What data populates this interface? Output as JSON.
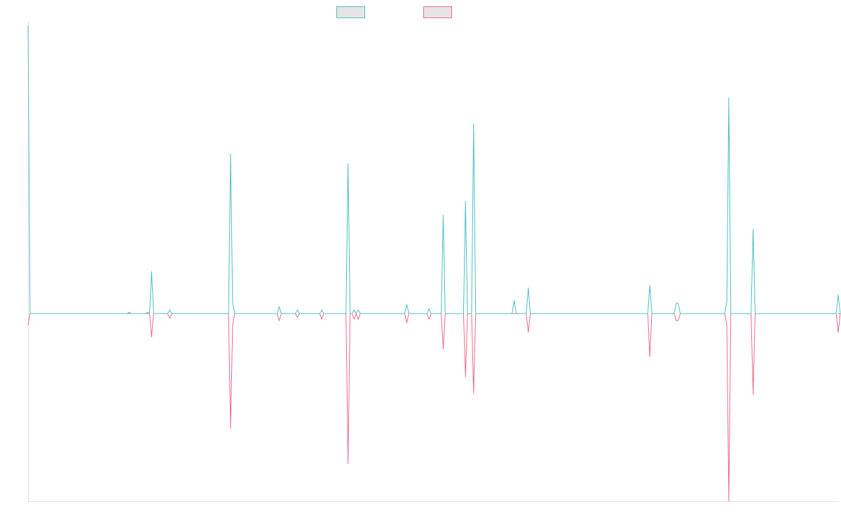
{
  "chart_data": {
    "type": "line",
    "title": "",
    "xlabel": "",
    "ylabel": "",
    "grid": false,
    "legend_position": "top-center",
    "ylim": [
      -4,
      6.15
    ],
    "series": [
      {
        "color": "#4bc0c0",
        "fill": "#e5e5e5",
        "points": [
          [
            1,
            6.15
          ],
          [
            2,
            0
          ],
          [
            50,
            0
          ],
          [
            51,
            0.03
          ],
          [
            52,
            0
          ],
          [
            59,
            0
          ],
          [
            60,
            0.03
          ],
          [
            61,
            0
          ],
          [
            62,
            0.9
          ],
          [
            63,
            0
          ],
          [
            70,
            0
          ],
          [
            71,
            0.08
          ],
          [
            72,
            0
          ],
          [
            100,
            0
          ],
          [
            101,
            3.4
          ],
          [
            102,
            0.25
          ],
          [
            103,
            0
          ],
          [
            124,
            0
          ],
          [
            125,
            0.15
          ],
          [
            126,
            0
          ],
          [
            133,
            0
          ],
          [
            134,
            0.08
          ],
          [
            135,
            0
          ],
          [
            145,
            0
          ],
          [
            146,
            0.08
          ],
          [
            147,
            0
          ],
          [
            158,
            0
          ],
          [
            159,
            3.2
          ],
          [
            160,
            0
          ],
          [
            161,
            0
          ],
          [
            162,
            0.08
          ],
          [
            163,
            0
          ],
          [
            164,
            0.08
          ],
          [
            165,
            0
          ],
          [
            187,
            0
          ],
          [
            188,
            0.2
          ],
          [
            189,
            0
          ],
          [
            198,
            0
          ],
          [
            199,
            0.1
          ],
          [
            200,
            0
          ],
          [
            205,
            0
          ],
          [
            206,
            2.1
          ],
          [
            207,
            0
          ],
          [
            216,
            0
          ],
          [
            217,
            2.4
          ],
          [
            218,
            0
          ],
          [
            220,
            0
          ],
          [
            221,
            4.05
          ],
          [
            222,
            0
          ],
          [
            240,
            0
          ],
          [
            241,
            0.28
          ],
          [
            242,
            0
          ],
          [
            247,
            0
          ],
          [
            248,
            0.55
          ],
          [
            249,
            0
          ],
          [
            307,
            0
          ],
          [
            308,
            0.6
          ],
          [
            309,
            0
          ],
          [
            320,
            0
          ],
          [
            321,
            0.22
          ],
          [
            322,
            0.22
          ],
          [
            323,
            0
          ],
          [
            345,
            0
          ],
          [
            346,
            0.25
          ],
          [
            347,
            4.6
          ],
          [
            348,
            0
          ],
          [
            358,
            0
          ],
          [
            359,
            1.8
          ],
          [
            360,
            0
          ],
          [
            400,
            0
          ],
          [
            401,
            0.4
          ],
          [
            402,
            0
          ]
        ]
      },
      {
        "color": "#f06a8a",
        "fill": "#e5e5e5",
        "points": [
          [
            1,
            -0.25
          ],
          [
            2,
            0
          ],
          [
            61,
            0
          ],
          [
            62,
            -0.5
          ],
          [
            63,
            0
          ],
          [
            70,
            0
          ],
          [
            71,
            -0.1
          ],
          [
            72,
            0
          ],
          [
            100,
            0
          ],
          [
            101,
            -2.45
          ],
          [
            102,
            -0.25
          ],
          [
            103,
            0
          ],
          [
            124,
            0
          ],
          [
            125,
            -0.15
          ],
          [
            126,
            0
          ],
          [
            133,
            0
          ],
          [
            134,
            -0.08
          ],
          [
            135,
            0
          ],
          [
            145,
            0
          ],
          [
            146,
            -0.12
          ],
          [
            147,
            0
          ],
          [
            158,
            0
          ],
          [
            159,
            -3.2
          ],
          [
            160,
            0
          ],
          [
            161,
            0
          ],
          [
            162,
            -0.12
          ],
          [
            163,
            0
          ],
          [
            164,
            -0.12
          ],
          [
            165,
            0
          ],
          [
            187,
            0
          ],
          [
            188,
            -0.2
          ],
          [
            189,
            0
          ],
          [
            198,
            0
          ],
          [
            199,
            -0.12
          ],
          [
            200,
            0
          ],
          [
            205,
            0
          ],
          [
            206,
            -0.75
          ],
          [
            207,
            0
          ],
          [
            216,
            0
          ],
          [
            217,
            -1.35
          ],
          [
            218,
            0
          ],
          [
            220,
            0
          ],
          [
            221,
            -1.7
          ],
          [
            222,
            0
          ],
          [
            247,
            0
          ],
          [
            248,
            -0.4
          ],
          [
            249,
            0
          ],
          [
            307,
            0
          ],
          [
            308,
            -0.92
          ],
          [
            309,
            0
          ],
          [
            320,
            0
          ],
          [
            321,
            -0.15
          ],
          [
            322,
            -0.15
          ],
          [
            323,
            0
          ],
          [
            345,
            0
          ],
          [
            346,
            -0.25
          ],
          [
            347,
            -4
          ],
          [
            348,
            0
          ],
          [
            358,
            0
          ],
          [
            359,
            -1.72
          ],
          [
            360,
            0
          ],
          [
            400,
            0
          ],
          [
            401,
            -0.4
          ],
          [
            402,
            0
          ]
        ]
      }
    ],
    "xlim": [
      1,
      401
    ]
  }
}
